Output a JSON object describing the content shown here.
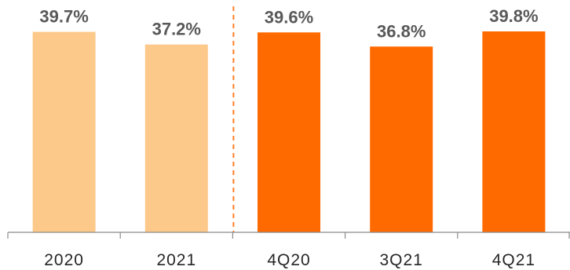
{
  "chart_data": {
    "type": "bar",
    "categories": [
      "2020",
      "2021",
      "4Q20",
      "3Q21",
      "4Q21"
    ],
    "values": [
      39.7,
      37.2,
      39.6,
      36.8,
      39.8
    ],
    "value_labels": [
      "39.7%",
      "37.2%",
      "39.6%",
      "36.8%",
      "39.8%"
    ],
    "value_unit": "%",
    "groups": [
      {
        "categories": [
          "2020",
          "2021"
        ],
        "color": "#FDC98A"
      },
      {
        "categories": [
          "4Q20",
          "3Q21",
          "4Q21"
        ],
        "color": "#FF6A00"
      }
    ],
    "group_separator": {
      "between": [
        "2021",
        "4Q20"
      ],
      "style": "dashed",
      "color": "#FF7F27"
    },
    "ylim": [
      0,
      39.8
    ],
    "grid": false,
    "legend": "none",
    "title": "",
    "xlabel": "",
    "ylabel": ""
  }
}
